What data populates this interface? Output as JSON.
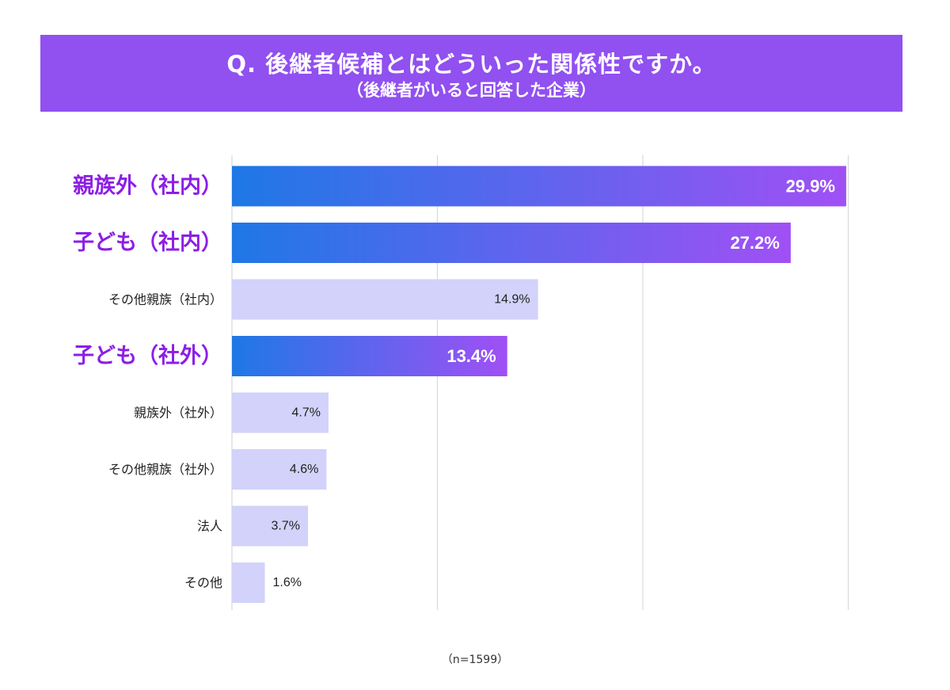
{
  "header": {
    "title": "Q. 後継者候補とはどういった関係性ですか。",
    "subtitle": "（後継者がいると回答した企業）"
  },
  "colors": {
    "header_bg": "#9150f0",
    "highlight_start": "#1e78e6",
    "highlight_end": "#a050f5",
    "highlight_label": "#8c1ee6",
    "normal_bar": "#d2d2fa",
    "normal_label": "#222222",
    "gridline": "#d9d9d9"
  },
  "chart_data": {
    "type": "bar",
    "orientation": "horizontal",
    "title": "Q. 後継者候補とはどういった関係性ですか。",
    "subtitle": "（後継者がいると回答した企業）",
    "unit": "%",
    "xlim": [
      0,
      30
    ],
    "grid": true,
    "categories": [
      "親族外（社内）",
      "子ども（社内）",
      "その他親族（社内）",
      "子ども（社外）",
      "親族外（社外）",
      "その他親族（社外）",
      "法人",
      "その他"
    ],
    "values": [
      29.9,
      27.2,
      14.9,
      13.4,
      4.7,
      4.6,
      3.7,
      1.6
    ],
    "value_labels": [
      "29.9%",
      "27.2%",
      "14.9%",
      "13.4%",
      "4.7%",
      "4.6%",
      "3.7%",
      "1.6%"
    ],
    "highlighted": [
      true,
      true,
      false,
      true,
      false,
      false,
      false,
      false
    ]
  },
  "footer": {
    "note": "（n=1599）"
  }
}
